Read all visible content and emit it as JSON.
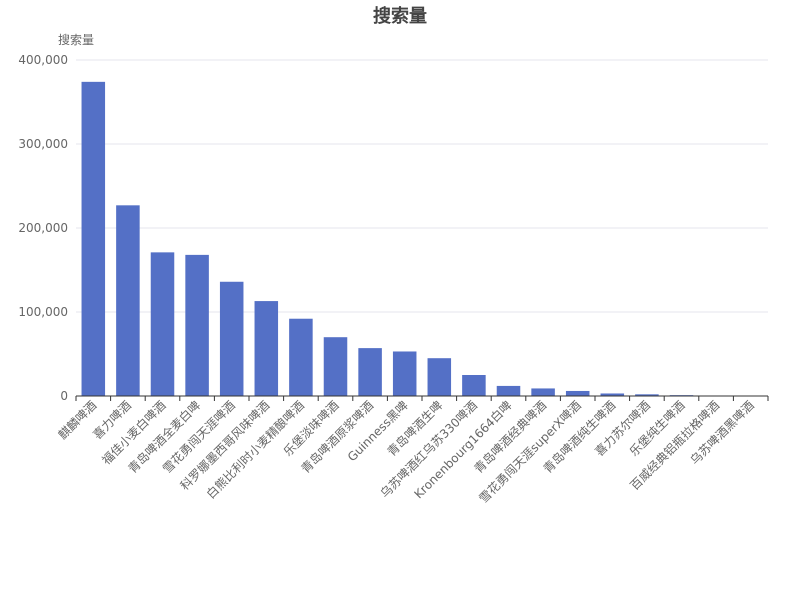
{
  "chart_data": {
    "type": "bar",
    "title": "搜索量",
    "xlabel": "",
    "ylabel": "搜索量",
    "ylim": [
      0,
      400000
    ],
    "yticks": [
      0,
      100000,
      200000,
      300000,
      400000
    ],
    "ytick_labels": [
      "0",
      "100,000",
      "200,000",
      "300,000",
      "400,000"
    ],
    "grid": true,
    "bar_color": "#5470c6",
    "categories": [
      "麒麟啤酒",
      "喜力啤酒",
      "福佳小麦白啤酒",
      "青岛啤酒全麦白啤",
      "雪花勇闯天涯啤酒",
      "科罗娜墨西哥风味啤酒",
      "白熊比利时小麦精酿啤酒",
      "乐堡淡味啤酒",
      "青岛啤酒原浆啤酒",
      "Guinness黑啤",
      "青岛啤酒生啤",
      "乌苏啤酒红乌苏330啤酒",
      "Kronenbourg1664白啤",
      "青岛啤酒经典啤酒",
      "雪花勇闯天涯superX啤酒",
      "青岛啤酒纯生啤酒",
      "喜力苏尔啤酒",
      "乐堡纯生啤酒",
      "百威经典铝瓶拉格啤酒",
      "乌苏啤酒黑啤酒"
    ],
    "values": [
      374000,
      227000,
      171000,
      168000,
      136000,
      113000,
      92000,
      70000,
      57000,
      53000,
      45000,
      25000,
      12000,
      9000,
      6000,
      3000,
      2000,
      1000,
      600,
      400
    ]
  }
}
